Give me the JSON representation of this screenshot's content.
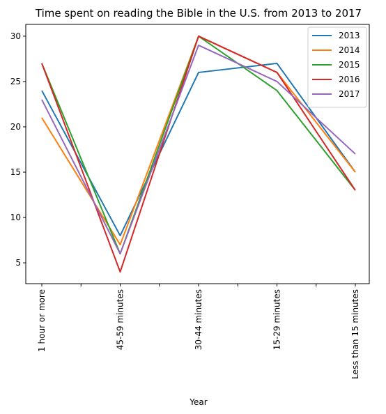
{
  "chart_data": {
    "type": "line",
    "title": "Time spent on reading the Bible in the U.S. from 2013 to 2017",
    "xlabel": "Year",
    "ylabel": "",
    "categories": [
      "1 hour or more",
      "45-59 minutes",
      "30-44 minutes",
      "15-29 minutes",
      "Less than 15 minutes"
    ],
    "yticks": [
      5,
      10,
      15,
      20,
      25,
      30
    ],
    "ylim": [
      2.7,
      31.3
    ],
    "grid": false,
    "legend_position": "top-right",
    "series": [
      {
        "name": "2013",
        "color": "#1f77b4",
        "values": [
          24,
          8,
          26,
          27,
          15
        ]
      },
      {
        "name": "2014",
        "color": "#ff7f0e",
        "values": [
          21,
          7,
          30,
          26,
          15
        ]
      },
      {
        "name": "2015",
        "color": "#2ca02c",
        "values": [
          27,
          6,
          30,
          24,
          13
        ]
      },
      {
        "name": "2016",
        "color": "#d62728",
        "values": [
          27,
          4,
          30,
          26,
          13
        ]
      },
      {
        "name": "2017",
        "color": "#9467bd",
        "values": [
          23,
          6,
          29,
          25,
          17
        ]
      }
    ]
  }
}
